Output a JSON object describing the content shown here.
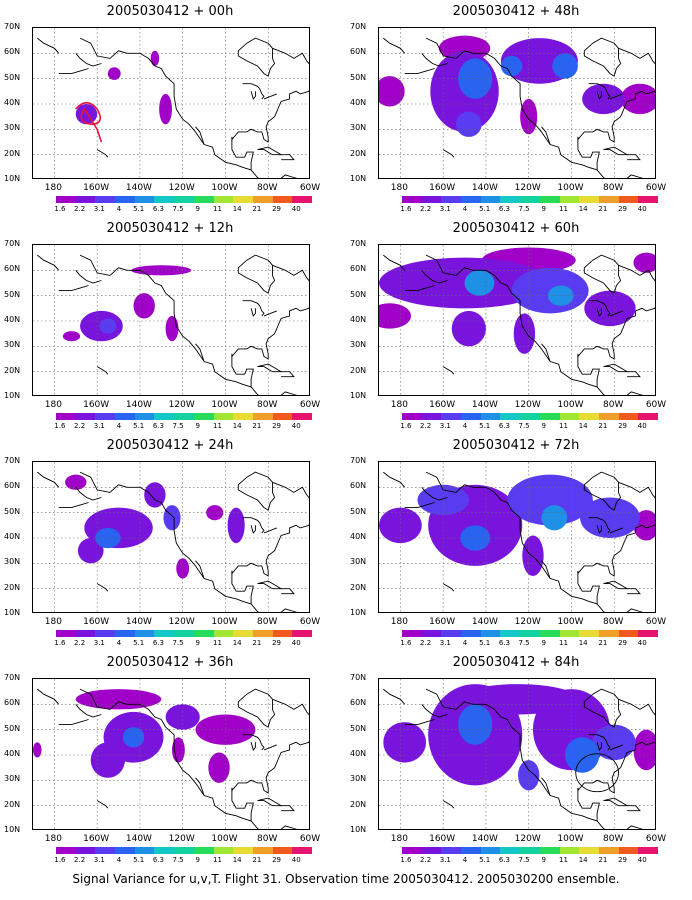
{
  "caption": "Signal Variance for u,v,T. Flight 31. Observation time 2005030412. 2005030200 ensemble.",
  "lat_labels": [
    "70N",
    "60N",
    "50N",
    "40N",
    "30N",
    "20N",
    "10N"
  ],
  "lon_labels": [
    "180",
    "160W",
    "140W",
    "120W",
    "100W",
    "80W",
    "60W"
  ],
  "colorbar_levels": [
    "1.6",
    "2.2",
    "3.1",
    "4",
    "5.1",
    "6.3",
    "7.5",
    "9",
    "11",
    "14",
    "21",
    "29",
    "40"
  ],
  "colorbar_colors": [
    "#a000c8",
    "#7814dc",
    "#5a3cf0",
    "#2864f0",
    "#1e90e6",
    "#14c8c8",
    "#14d2a0",
    "#28dc5a",
    "#a0e632",
    "#e6dc32",
    "#f0a028",
    "#f05a1e",
    "#e6146e"
  ],
  "map_extent": {
    "lon": [
      -190,
      -60
    ],
    "lat": [
      10,
      70
    ]
  },
  "panels": [
    {
      "title": "2005030412 + 00h",
      "blobs": [
        {
          "lon": -165,
          "lat": 36,
          "rx": 5,
          "ry": 4,
          "level": 1
        },
        {
          "lon": -152,
          "lat": 52,
          "rx": 3,
          "ry": 2.5,
          "level": 0
        },
        {
          "lon": -128,
          "lat": 38,
          "rx": 3,
          "ry": 6,
          "level": 0
        },
        {
          "lon": -133,
          "lat": 58,
          "rx": 2,
          "ry": 3,
          "level": 0
        }
      ],
      "obs_track": true,
      "obs_circle": false
    },
    {
      "title": "2005030412 + 48h",
      "blobs": [
        {
          "lon": -185,
          "lat": 45,
          "rx": 7,
          "ry": 6,
          "level": 0
        },
        {
          "lon": -150,
          "lat": 45,
          "rx": 16,
          "ry": 16,
          "level": 1
        },
        {
          "lon": -145,
          "lat": 50,
          "rx": 8,
          "ry": 8,
          "level": 3
        },
        {
          "lon": -148,
          "lat": 32,
          "rx": 6,
          "ry": 5,
          "level": 2
        },
        {
          "lon": -115,
          "lat": 57,
          "rx": 18,
          "ry": 9,
          "level": 1
        },
        {
          "lon": -103,
          "lat": 55,
          "rx": 6,
          "ry": 5,
          "level": 3
        },
        {
          "lon": -128,
          "lat": 55,
          "rx": 5,
          "ry": 4,
          "level": 3
        },
        {
          "lon": -120,
          "lat": 35,
          "rx": 4,
          "ry": 7,
          "level": 0
        },
        {
          "lon": -85,
          "lat": 42,
          "rx": 10,
          "ry": 6,
          "level": 1
        },
        {
          "lon": -68,
          "lat": 42,
          "rx": 9,
          "ry": 6,
          "level": 0
        },
        {
          "lon": -150,
          "lat": 62,
          "rx": 12,
          "ry": 5,
          "level": 0
        }
      ],
      "obs_track": false,
      "obs_circle": false
    },
    {
      "title": "2005030412 + 12h",
      "blobs": [
        {
          "lon": -158,
          "lat": 38,
          "rx": 10,
          "ry": 6,
          "level": 1
        },
        {
          "lon": -155,
          "lat": 38,
          "rx": 4,
          "ry": 3,
          "level": 2
        },
        {
          "lon": -138,
          "lat": 46,
          "rx": 5,
          "ry": 5,
          "level": 0
        },
        {
          "lon": -130,
          "lat": 60,
          "rx": 14,
          "ry": 2,
          "level": 0
        },
        {
          "lon": -125,
          "lat": 37,
          "rx": 3,
          "ry": 5,
          "level": 0
        },
        {
          "lon": -172,
          "lat": 34,
          "rx": 4,
          "ry": 2,
          "level": 0
        }
      ],
      "obs_track": false,
      "obs_circle": false
    },
    {
      "title": "2005030412 + 60h",
      "blobs": [
        {
          "lon": -150,
          "lat": 55,
          "rx": 40,
          "ry": 10,
          "level": 1
        },
        {
          "lon": -143,
          "lat": 55,
          "rx": 7,
          "ry": 5,
          "level": 4
        },
        {
          "lon": -110,
          "lat": 52,
          "rx": 18,
          "ry": 9,
          "level": 2
        },
        {
          "lon": -105,
          "lat": 50,
          "rx": 6,
          "ry": 4,
          "level": 4
        },
        {
          "lon": -185,
          "lat": 42,
          "rx": 10,
          "ry": 5,
          "level": 0
        },
        {
          "lon": -148,
          "lat": 37,
          "rx": 8,
          "ry": 7,
          "level": 1
        },
        {
          "lon": -122,
          "lat": 35,
          "rx": 5,
          "ry": 8,
          "level": 1
        },
        {
          "lon": -82,
          "lat": 45,
          "rx": 12,
          "ry": 7,
          "level": 1
        },
        {
          "lon": -120,
          "lat": 64,
          "rx": 22,
          "ry": 5,
          "level": 0
        },
        {
          "lon": -65,
          "lat": 63,
          "rx": 6,
          "ry": 4,
          "level": 0
        }
      ],
      "obs_track": false,
      "obs_circle": false
    },
    {
      "title": "2005030412 + 24h",
      "blobs": [
        {
          "lon": -150,
          "lat": 44,
          "rx": 16,
          "ry": 8,
          "level": 1
        },
        {
          "lon": -155,
          "lat": 40,
          "rx": 6,
          "ry": 4,
          "level": 3
        },
        {
          "lon": -163,
          "lat": 35,
          "rx": 6,
          "ry": 5,
          "level": 1
        },
        {
          "lon": -170,
          "lat": 62,
          "rx": 5,
          "ry": 3,
          "level": 0
        },
        {
          "lon": -133,
          "lat": 57,
          "rx": 5,
          "ry": 5,
          "level": 1
        },
        {
          "lon": -125,
          "lat": 48,
          "rx": 4,
          "ry": 5,
          "level": 2
        },
        {
          "lon": -105,
          "lat": 50,
          "rx": 4,
          "ry": 3,
          "level": 0
        },
        {
          "lon": -95,
          "lat": 45,
          "rx": 4,
          "ry": 7,
          "level": 1
        },
        {
          "lon": -120,
          "lat": 28,
          "rx": 3,
          "ry": 4,
          "level": 0
        }
      ],
      "obs_track": false,
      "obs_circle": false
    },
    {
      "title": "2005030412 + 72h",
      "blobs": [
        {
          "lon": -145,
          "lat": 45,
          "rx": 22,
          "ry": 16,
          "level": 1
        },
        {
          "lon": -145,
          "lat": 40,
          "rx": 7,
          "ry": 5,
          "level": 3
        },
        {
          "lon": -160,
          "lat": 55,
          "rx": 12,
          "ry": 6,
          "level": 2
        },
        {
          "lon": -110,
          "lat": 55,
          "rx": 20,
          "ry": 10,
          "level": 2
        },
        {
          "lon": -108,
          "lat": 48,
          "rx": 6,
          "ry": 5,
          "level": 4
        },
        {
          "lon": -82,
          "lat": 48,
          "rx": 14,
          "ry": 8,
          "level": 2
        },
        {
          "lon": -118,
          "lat": 33,
          "rx": 5,
          "ry": 8,
          "level": 1
        },
        {
          "lon": -180,
          "lat": 45,
          "rx": 10,
          "ry": 7,
          "level": 1
        },
        {
          "lon": -65,
          "lat": 45,
          "rx": 6,
          "ry": 6,
          "level": 0
        }
      ],
      "obs_track": false,
      "obs_circle": false
    },
    {
      "title": "2005030412 + 36h",
      "blobs": [
        {
          "lon": -143,
          "lat": 47,
          "rx": 14,
          "ry": 10,
          "level": 1
        },
        {
          "lon": -143,
          "lat": 47,
          "rx": 5,
          "ry": 4,
          "level": 3
        },
        {
          "lon": -155,
          "lat": 38,
          "rx": 8,
          "ry": 7,
          "level": 1
        },
        {
          "lon": -150,
          "lat": 62,
          "rx": 20,
          "ry": 4,
          "level": 0
        },
        {
          "lon": -120,
          "lat": 55,
          "rx": 8,
          "ry": 5,
          "level": 1
        },
        {
          "lon": -100,
          "lat": 50,
          "rx": 14,
          "ry": 6,
          "level": 0
        },
        {
          "lon": -122,
          "lat": 42,
          "rx": 3,
          "ry": 5,
          "level": 0
        },
        {
          "lon": -103,
          "lat": 35,
          "rx": 5,
          "ry": 6,
          "level": 0
        },
        {
          "lon": -188,
          "lat": 42,
          "rx": 2,
          "ry": 3,
          "level": 0
        }
      ],
      "obs_track": false,
      "obs_circle": false
    },
    {
      "title": "2005030412 + 84h",
      "blobs": [
        {
          "lon": -145,
          "lat": 48,
          "rx": 22,
          "ry": 20,
          "level": 1
        },
        {
          "lon": -145,
          "lat": 52,
          "rx": 8,
          "ry": 8,
          "level": 3
        },
        {
          "lon": -125,
          "lat": 62,
          "rx": 28,
          "ry": 6,
          "level": 1
        },
        {
          "lon": -100,
          "lat": 50,
          "rx": 18,
          "ry": 16,
          "level": 1
        },
        {
          "lon": -95,
          "lat": 40,
          "rx": 8,
          "ry": 7,
          "level": 3
        },
        {
          "lon": -80,
          "lat": 45,
          "rx": 10,
          "ry": 7,
          "level": 2
        },
        {
          "lon": -120,
          "lat": 32,
          "rx": 5,
          "ry": 6,
          "level": 2
        },
        {
          "lon": -178,
          "lat": 45,
          "rx": 10,
          "ry": 8,
          "level": 1
        },
        {
          "lon": -65,
          "lat": 42,
          "rx": 6,
          "ry": 8,
          "level": 0
        }
      ],
      "obs_track": false,
      "obs_circle": true
    }
  ]
}
